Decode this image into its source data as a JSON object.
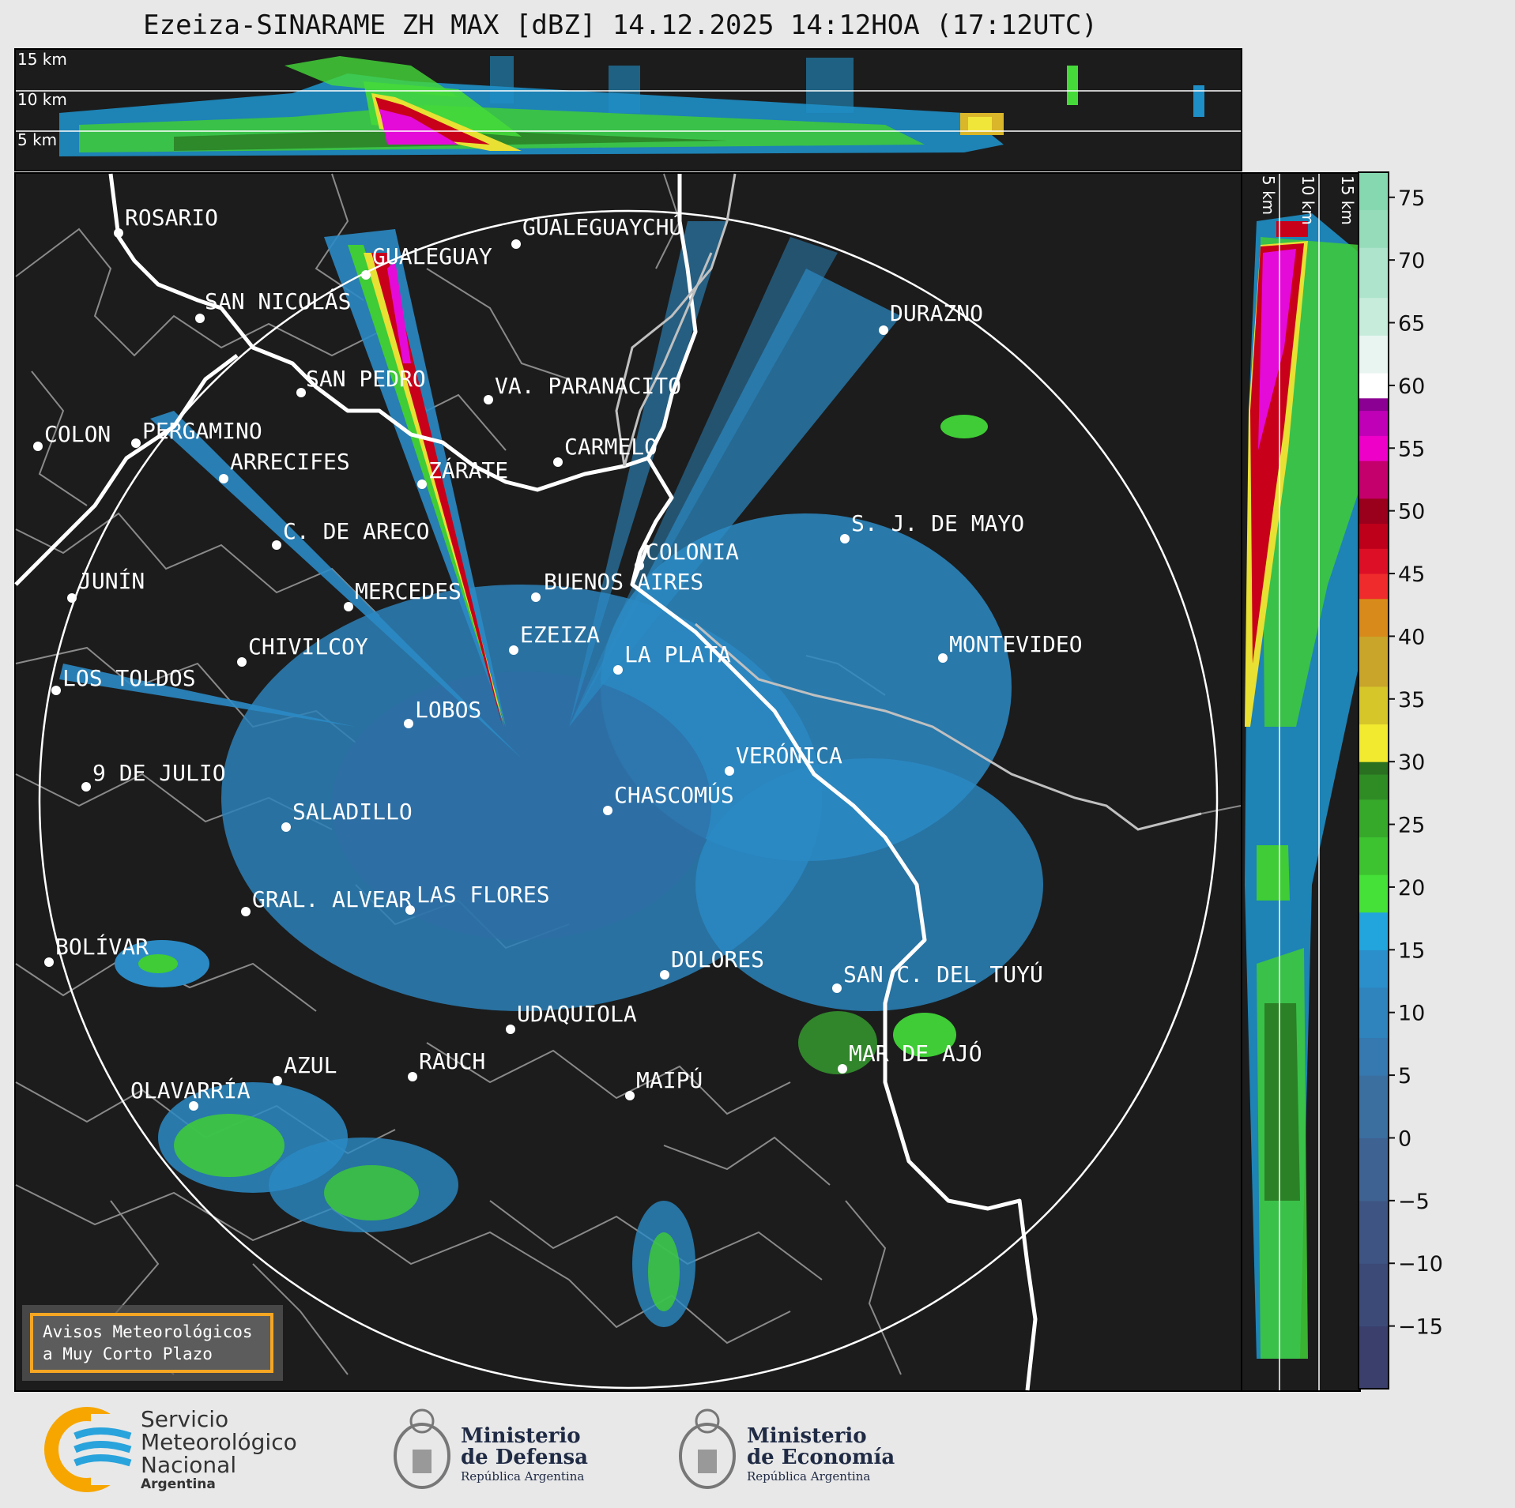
{
  "title": "Ezeiza-SINARAME ZH MAX [dBZ] 14.12.2025 14:12HOA (17:12UTC)",
  "top_panel": {
    "height_labels": [
      "15 km",
      "10 km",
      "5 km"
    ]
  },
  "side_panel": {
    "height_labels": [
      "5 km",
      "10 km",
      "15 km"
    ]
  },
  "colorbar": {
    "ticks": [
      "75",
      "70",
      "65",
      "60",
      "55",
      "50",
      "45",
      "40",
      "35",
      "30",
      "25",
      "20",
      "15",
      "10",
      "5",
      "0",
      "−5",
      "−10",
      "−15"
    ],
    "min": -20,
    "max": 77
  },
  "cities": [
    {
      "name": "ROSARIO"
    },
    {
      "name": "GUALEGUAYCHÚ"
    },
    {
      "name": "GUALEGUAY"
    },
    {
      "name": "SAN NICOLÁS"
    },
    {
      "name": "DURAZNO"
    },
    {
      "name": "SAN PEDRO"
    },
    {
      "name": "VA. PARANACITO"
    },
    {
      "name": "COLON"
    },
    {
      "name": "PERGAMINO"
    },
    {
      "name": "CARMELO"
    },
    {
      "name": "ARRECIFES"
    },
    {
      "name": "ZÁRATE"
    },
    {
      "name": "S. J. DE MAYO"
    },
    {
      "name": "C. DE ARECO"
    },
    {
      "name": "COLONIA"
    },
    {
      "name": "JUNÍN"
    },
    {
      "name": "BUENOS AIRES"
    },
    {
      "name": "MERCEDES"
    },
    {
      "name": "MONTEVIDEO"
    },
    {
      "name": "CHIVILCOY"
    },
    {
      "name": "EZEIZA"
    },
    {
      "name": "LA PLATA"
    },
    {
      "name": "LOS TOLDOS"
    },
    {
      "name": "LOBOS"
    },
    {
      "name": "VERÓNICA"
    },
    {
      "name": "9 DE JULIO"
    },
    {
      "name": "CHASCOMÚS"
    },
    {
      "name": "SALADILLO"
    },
    {
      "name": "GRAL. ALVEAR"
    },
    {
      "name": "LAS FLORES"
    },
    {
      "name": "BOLÍVAR"
    },
    {
      "name": "DOLORES"
    },
    {
      "name": "SAN C. DEL TUYÚ"
    },
    {
      "name": "UDAQUIOLA"
    },
    {
      "name": "MAR DE AJÓ"
    },
    {
      "name": "AZUL"
    },
    {
      "name": "RAUCH"
    },
    {
      "name": "OLAVARRÍA"
    },
    {
      "name": "MAIPÚ"
    }
  ],
  "avisos": {
    "line1": "Avisos Meteorológicos",
    "line2": "a Muy Corto Plazo"
  },
  "logos": {
    "smn": {
      "line1": "Servicio",
      "line2": "Meteorológico",
      "line3": "Nacional",
      "line4": "Argentina"
    },
    "defensa": {
      "line1": "Ministerio",
      "line2": "de Defensa",
      "line3": "República Argentina"
    },
    "economia": {
      "line1": "Ministerio",
      "line2": "de Economía",
      "line3": "República Argentina"
    }
  },
  "colors": {
    "smn_blue": "#29a3dc",
    "smn_orange": "#f7a600",
    "accent": "#f5a623"
  }
}
